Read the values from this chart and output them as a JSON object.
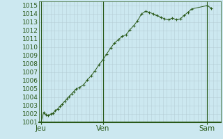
{
  "background_color": "#cce8f0",
  "plot_bg_color": "#cce8f0",
  "grid_color_major": "#b0c8d0",
  "grid_color_minor": "#c0d8e0",
  "line_color": "#2a5a1a",
  "marker_color": "#2a5a1a",
  "vline_color": "#2a5a1a",
  "spine_color": "#2a5a1a",
  "tick_label_color": "#2a5a1a",
  "ylim": [
    1001,
    1015.5
  ],
  "xlim": [
    0,
    47
  ],
  "yticks": [
    1001,
    1002,
    1003,
    1004,
    1005,
    1006,
    1007,
    1008,
    1009,
    1010,
    1011,
    1012,
    1013,
    1014,
    1015
  ],
  "xtick_labels": [
    "Jeu",
    "Ven",
    "Sam"
  ],
  "xtick_positions": [
    0.5,
    16.5,
    43.5
  ],
  "vline_positions": [
    0.5,
    16.5,
    43.5
  ],
  "x_values": [
    0.5,
    1.2,
    1.8,
    2.4,
    3.0,
    3.6,
    4.2,
    4.8,
    5.4,
    6.0,
    6.6,
    7.2,
    7.8,
    8.4,
    9.0,
    9.6,
    10.5,
    11.5,
    12.5,
    13.5,
    14.5,
    15.5,
    16.5,
    17.5,
    18.5,
    19.5,
    20.5,
    21.5,
    22.5,
    23.5,
    24.5,
    25.5,
    26.5,
    27.5,
    28.5,
    29.5,
    30.5,
    31.5,
    32.5,
    33.5,
    34.5,
    35.5,
    36.5,
    37.5,
    38.5,
    39.5,
    43.5,
    44.5
  ],
  "y_values": [
    1001.0,
    1002.2,
    1001.9,
    1001.8,
    1002.0,
    1002.1,
    1002.4,
    1002.6,
    1002.9,
    1003.2,
    1003.5,
    1003.8,
    1004.1,
    1004.4,
    1004.7,
    1005.0,
    1005.2,
    1005.5,
    1006.1,
    1006.6,
    1007.2,
    1007.9,
    1008.5,
    1009.2,
    1009.9,
    1010.5,
    1010.9,
    1011.3,
    1011.5,
    1012.1,
    1012.6,
    1013.2,
    1014.0,
    1014.3,
    1014.2,
    1014.0,
    1013.8,
    1013.6,
    1013.4,
    1013.3,
    1013.5,
    1013.3,
    1013.4,
    1013.8,
    1014.2,
    1014.6,
    1015.0,
    1014.7
  ],
  "tick_fontsize": 6.5,
  "label_fontsize": 7.5
}
